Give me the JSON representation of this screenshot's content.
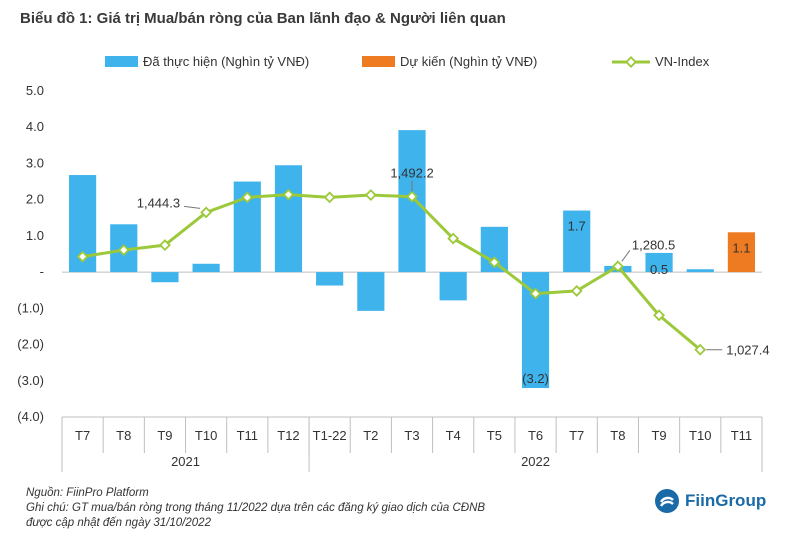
{
  "title": "Biểu đồ 1: Giá trị Mua/bán ròng của Ban lãnh đạo & Người liên quan",
  "colors": {
    "actual": "#3fb3ec",
    "forecast": "#ee7b22",
    "line": "#9cc93a",
    "marker_fill": "#ffffff",
    "axis": "#bfbfbf",
    "text": "#333333",
    "logo": "#1a6aa8"
  },
  "chart_data": {
    "type": "bar+line",
    "categories": [
      "T7",
      "T8",
      "T9",
      "T10",
      "T11",
      "T12",
      "T1-22",
      "T2",
      "T3",
      "T4",
      "T5",
      "T6",
      "T7",
      "T8",
      "T9",
      "T10",
      "T11"
    ],
    "groups": [
      {
        "label": "2021",
        "from": 0,
        "to": 5
      },
      {
        "label": "2022",
        "from": 6,
        "to": 16
      }
    ],
    "series": [
      {
        "name": "Đã thực hiện (Nghìn tỷ VNĐ)",
        "type": "bar",
        "axis": "left",
        "values": [
          2.68,
          1.32,
          -0.28,
          0.23,
          2.5,
          2.95,
          -0.37,
          -1.07,
          3.92,
          -0.78,
          1.25,
          -3.2,
          1.7,
          0.17,
          0.53,
          0.08,
          null
        ]
      },
      {
        "name": "Dự kiến (Nghìn tỷ VNĐ)",
        "type": "bar",
        "axis": "left",
        "values": [
          null,
          null,
          null,
          null,
          null,
          null,
          null,
          null,
          null,
          null,
          null,
          null,
          null,
          null,
          null,
          null,
          1.1
        ]
      },
      {
        "name": "VN-Index",
        "type": "line",
        "axis": "right",
        "values": [
          1310,
          1330,
          1345,
          1444.3,
          1490,
          1498.3,
          1490,
          1497,
          1492.2,
          1365,
          1293,
          1197.6,
          1206,
          1280.5,
          1132,
          1027.4,
          null
        ]
      }
    ],
    "y_axis": {
      "min": -4,
      "max": 5,
      "step": 1,
      "tick_labels": [
        "(4.0)",
        "(3.0)",
        "(2.0)",
        "(1.0)",
        "-",
        "1.0",
        "2.0",
        "3.0",
        "4.0",
        "5.0"
      ]
    },
    "y2_axis": {
      "min": 823,
      "max": 1813,
      "visible": false
    },
    "data_labels": [
      {
        "series": 2,
        "index": 3,
        "text": "1,444.3",
        "pos": "left"
      },
      {
        "series": 2,
        "index": 8,
        "text": "1,492.2",
        "pos": "above"
      },
      {
        "series": 2,
        "index": 13,
        "text": "1,280.5",
        "pos": "right"
      },
      {
        "series": 2,
        "index": 15,
        "text": "1,027.4",
        "pos": "right"
      },
      {
        "series": 0,
        "index": 12,
        "text": "1.7",
        "pos": "inside"
      },
      {
        "series": 0,
        "index": 11,
        "text": "(3.2)",
        "pos": "inside"
      },
      {
        "series": 0,
        "index": 14,
        "text": "0.5",
        "pos": "inside"
      },
      {
        "series": 1,
        "index": 16,
        "text": "1.1",
        "pos": "inside"
      }
    ],
    "legend_position": "top"
  },
  "footer": {
    "source": "Nguồn: FiinPro Platform",
    "note_line1": "Ghi chú: GT mua/bán ròng trong tháng 11/2022 dựa trên các đăng ký giao dịch của CĐNB",
    "note_line2": "được cập nhật đến ngày 31/10/2022"
  },
  "logo": {
    "text": "FiinGroup",
    "icon": "fiingroup-logo-icon"
  }
}
